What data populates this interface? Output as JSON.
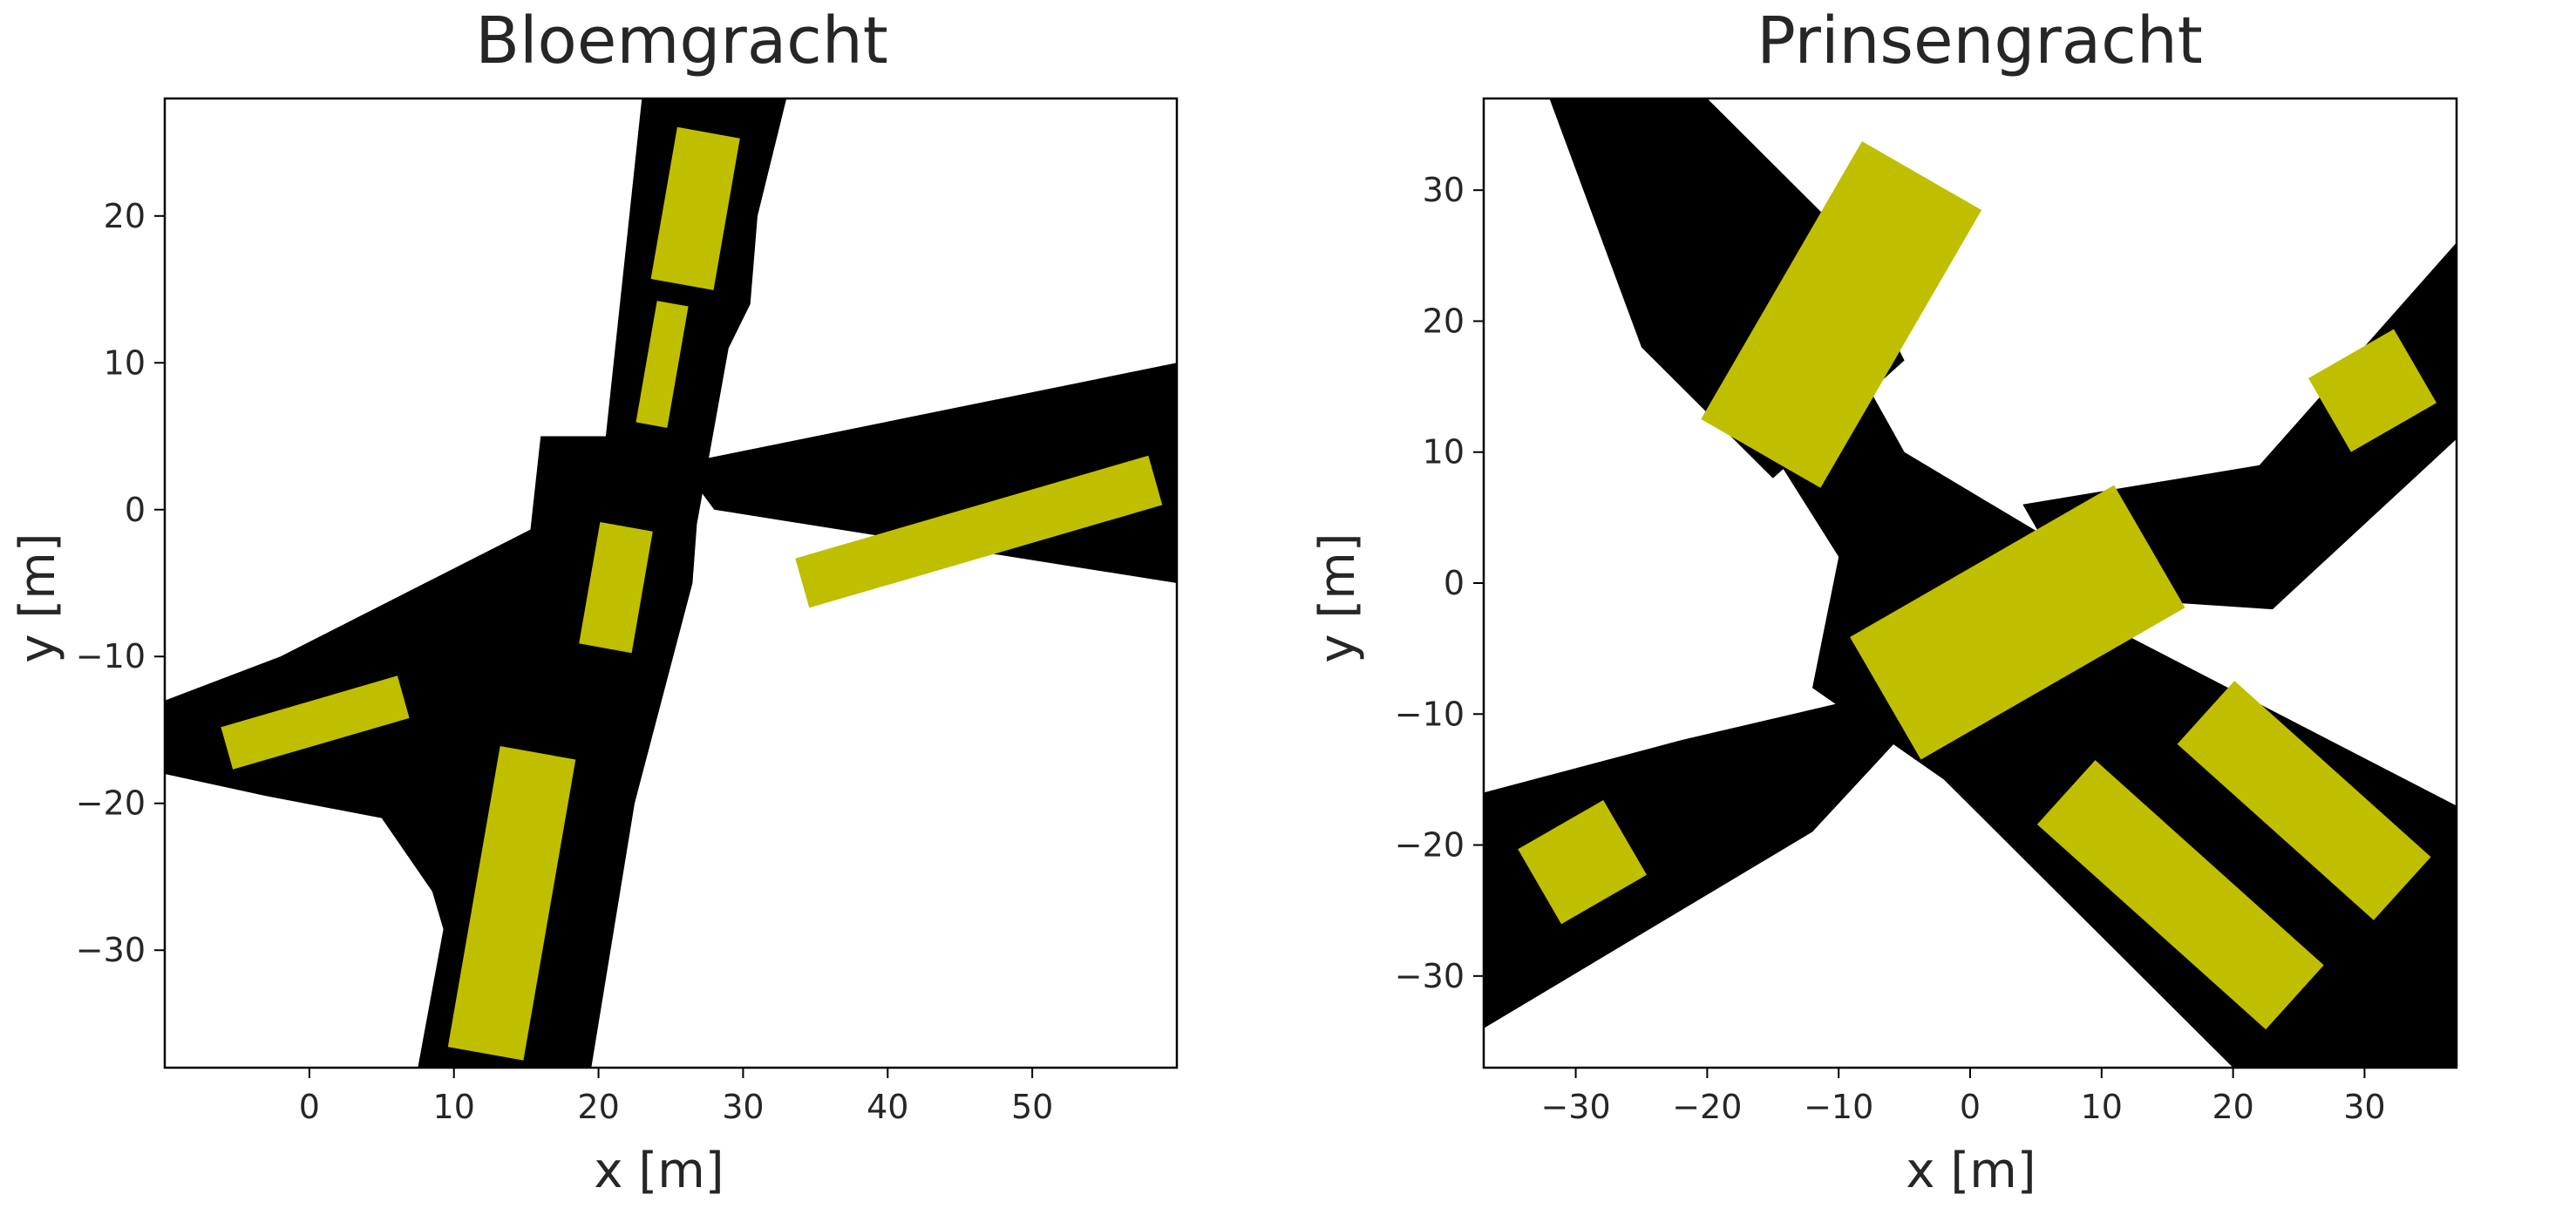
{
  "chart_data": [
    {
      "type": "map",
      "title": "Bloemgracht",
      "xlabel": "x [m]",
      "ylabel": "y [m]",
      "xlim": [
        -10,
        60
      ],
      "ylim": [
        -38,
        28
      ],
      "xticks": [
        0,
        10,
        20,
        30,
        40,
        50
      ],
      "xtick_labels": [
        "0",
        "10",
        "20",
        "30",
        "40",
        "50"
      ],
      "yticks": [
        20,
        10,
        0,
        -10,
        -20,
        -30
      ],
      "ytick_labels": [
        "20",
        "10",
        "0",
        "−10",
        "−20",
        "−30"
      ],
      "colors": {
        "road": "#000000",
        "rect": "#bfbf00",
        "frame": "#000000"
      },
      "roads": [
        [
          [
            20.5,
            5
          ],
          [
            23,
            28
          ],
          [
            33,
            28
          ],
          [
            31,
            20
          ],
          [
            30.5,
            14
          ],
          [
            29,
            11
          ],
          [
            26.8,
            -1
          ],
          [
            26.5,
            -5
          ],
          [
            22.5,
            -20
          ],
          [
            19.5,
            -38
          ],
          [
            7.5,
            -38
          ],
          [
            10.5,
            -22
          ],
          [
            15,
            -4
          ],
          [
            16,
            5
          ]
        ],
        [
          [
            22,
            8
          ],
          [
            28,
            0
          ],
          [
            60,
            -5
          ],
          [
            60,
            10
          ],
          [
            20,
            2
          ]
        ],
        [
          [
            -10,
            -13
          ],
          [
            -10,
            -18
          ],
          [
            -3,
            -19.5
          ],
          [
            5,
            -21
          ],
          [
            8.5,
            -26
          ],
          [
            10,
            -31
          ],
          [
            14,
            -31
          ],
          [
            17,
            -18
          ],
          [
            20,
            -5
          ],
          [
            18,
            0
          ],
          [
            8,
            -5
          ],
          [
            -2,
            -10
          ]
        ]
      ],
      "rects": [
        {
          "center": [
            26.7,
            20.5
          ],
          "length": 10.5,
          "width": 4.4,
          "angle_deg": 80
        },
        {
          "center": [
            24.4,
            9.9
          ],
          "length": 8.4,
          "width": 2.2,
          "angle_deg": 80
        },
        {
          "center": [
            21.2,
            -5.3
          ],
          "length": 8.4,
          "width": 3.7,
          "angle_deg": 80
        },
        {
          "center": [
            14.0,
            -26.8
          ],
          "length": 20.8,
          "width": 5.3,
          "angle_deg": 80
        },
        {
          "center": [
            46.3,
            -1.5
          ],
          "length": 25.4,
          "width": 3.5,
          "angle_deg": 16
        },
        {
          "center": [
            0.4,
            -14.5
          ],
          "length": 12.7,
          "width": 3.0,
          "angle_deg": 16
        }
      ]
    },
    {
      "type": "map",
      "title": "Prinsengracht",
      "xlabel": "x [m]",
      "ylabel": "y [m]",
      "xlim": [
        -37,
        37
      ],
      "ylim": [
        -37,
        37
      ],
      "xticks": [
        -30,
        -20,
        -10,
        0,
        10,
        20,
        30
      ],
      "xtick_labels": [
        "−30",
        "−20",
        "−10",
        "0",
        "10",
        "20",
        "30"
      ],
      "yticks": [
        30,
        20,
        10,
        0,
        -10,
        -20,
        -30
      ],
      "ytick_labels": [
        "30",
        "20",
        "10",
        "0",
        "−10",
        "−20",
        "−30"
      ],
      "colors": {
        "road": "#000000",
        "rect": "#bfbf00",
        "frame": "#000000"
      },
      "roads": [
        [
          [
            -32,
            37
          ],
          [
            -20,
            37
          ],
          [
            -5,
            10
          ],
          [
            5,
            4
          ],
          [
            10,
            -3
          ],
          [
            37,
            -17
          ],
          [
            37,
            -37
          ],
          [
            20,
            -37
          ],
          [
            -2,
            -15
          ],
          [
            -12,
            -8
          ],
          [
            -10,
            2
          ]
        ],
        [
          [
            -37,
            -16
          ],
          [
            -37,
            -34
          ],
          [
            -12,
            -19
          ],
          [
            0,
            -6
          ],
          [
            -5,
            -8
          ],
          [
            -22,
            -12
          ]
        ],
        [
          [
            4,
            6
          ],
          [
            22,
            9
          ],
          [
            37,
            26
          ],
          [
            37,
            11
          ],
          [
            23,
            -2
          ],
          [
            8,
            -1
          ]
        ],
        [
          [
            -32,
            37
          ],
          [
            -20,
            37
          ],
          [
            -10,
            27
          ],
          [
            -5,
            17
          ],
          [
            -15,
            8
          ],
          [
            -25,
            18
          ]
        ]
      ],
      "rects": [
        {
          "center": [
            -9.8,
            20.5
          ],
          "length": 24.5,
          "width": 10.5,
          "angle_deg": 60
        },
        {
          "center": [
            3.6,
            -3.0
          ],
          "length": 23.2,
          "width": 10.8,
          "angle_deg": 30
        },
        {
          "center": [
            30.6,
            14.7
          ],
          "length": 7.5,
          "width": 6.5,
          "angle_deg": 30
        },
        {
          "center": [
            -29.5,
            -21.3
          ],
          "length": 7.5,
          "width": 6.6,
          "angle_deg": 30
        },
        {
          "center": [
            25.4,
            -16.6
          ],
          "length": 20.1,
          "width": 6.5,
          "angle_deg": -42
        },
        {
          "center": [
            16.0,
            -23.8
          ],
          "length": 23.4,
          "width": 6.6,
          "angle_deg": -42
        }
      ]
    }
  ]
}
